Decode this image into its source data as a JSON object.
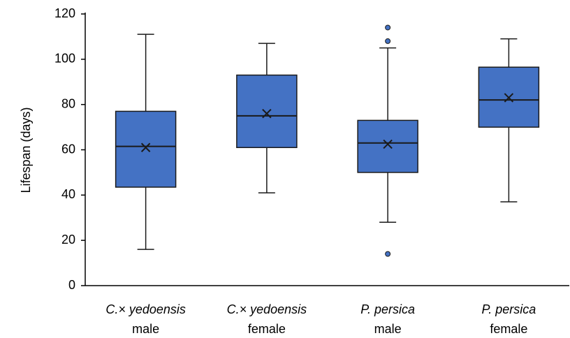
{
  "chart_data": {
    "type": "box",
    "y_label": "Lifespan (days)",
    "categories": [
      "C.× yedoensis",
      "C.× yedoensis",
      "P. persica",
      "P. persica"
    ],
    "sublabels": [
      "male",
      "female",
      "male",
      "female"
    ],
    "color": "#4472c4",
    "whisker_low": [
      16,
      41,
      28,
      37
    ],
    "q1": [
      43.5,
      61,
      50,
      70
    ],
    "median": [
      61.5,
      75,
      63,
      82
    ],
    "q3": [
      77,
      93,
      73,
      96.5
    ],
    "whisker_high": [
      111,
      107,
      105,
      109
    ],
    "mean": [
      61,
      76,
      62.5,
      83
    ],
    "outliers": [
      [],
      [],
      [
        114,
        108,
        14
      ],
      []
    ],
    "ylim": [
      0,
      120
    ],
    "yticks": [
      0,
      20,
      40,
      60,
      80,
      100,
      120
    ],
    "grid": false
  }
}
